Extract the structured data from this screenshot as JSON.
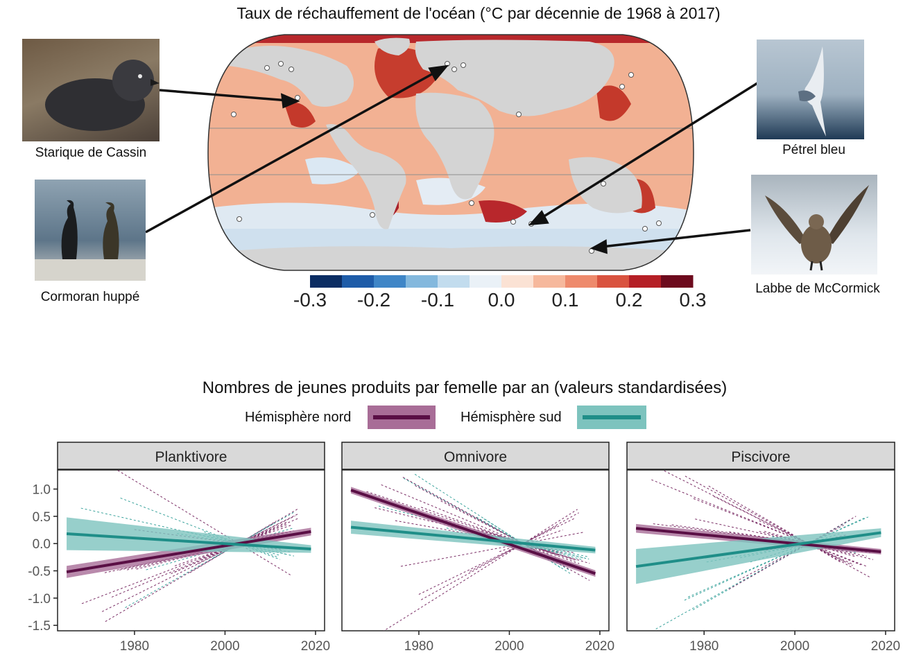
{
  "map": {
    "title": "Taux de réchauffement de l'océan (°C par décennie de 1968 à 2017)",
    "colorbar": {
      "ticks": [
        "-0.3",
        "-0.2",
        "-0.1",
        "0.0",
        "0.1",
        "0.2",
        "0.3"
      ],
      "colors": [
        "#0b2d63",
        "#1e5ca8",
        "#3f86c7",
        "#83b8dd",
        "#c2dcee",
        "#eaf1f7",
        "#fbe2d4",
        "#f6b89c",
        "#ee8a6c",
        "#d9533f",
        "#b51f26",
        "#6d0a1d"
      ]
    },
    "colors": {
      "land": "#d4d4d4",
      "ocean_warm": "#f0a584",
      "ocean_hot": "#c43a2c",
      "ocean_cool": "#cfe0ee"
    }
  },
  "birds": [
    {
      "id": "cassin",
      "label": "Starique de Cassin"
    },
    {
      "id": "cormoran",
      "label": "Cormoran huppé"
    },
    {
      "id": "petrel",
      "label": "Pétrel bleu"
    },
    {
      "id": "labbe",
      "label": "Labbe de McCormick"
    }
  ],
  "lower": {
    "title": "Nombres de jeunes produits par femelle par an (valeurs standardisées)",
    "legend": [
      {
        "label": "Hémisphère nord",
        "color": "#5a0f45",
        "band": "#a86d97"
      },
      {
        "label": "Hémisphère sud",
        "color": "#1f8e88",
        "band": "#7dc3be"
      }
    ]
  },
  "chart_data": [
    {
      "type": "line",
      "facet": "Planktivore",
      "xlim": [
        1963,
        2022
      ],
      "ylim": [
        -1.6,
        1.35
      ],
      "x_ticks": [
        1980,
        2000,
        2020
      ],
      "y_ticks": [
        1.0,
        0.5,
        0.0,
        -0.5,
        -1.0,
        -1.5
      ],
      "y_tick_labels": [
        "1.0",
        "0.5",
        "0.0",
        "-0.5",
        "-1.0",
        "-1.5"
      ],
      "series": [
        {
          "name": "Hémisphère nord",
          "x": [
            1965,
            2019
          ],
          "y": [
            -0.52,
            0.22
          ],
          "band": [
            0.11,
            0.07
          ]
        },
        {
          "name": "Hémisphère sud",
          "x": [
            1965,
            2019
          ],
          "y": [
            0.18,
            -0.1
          ],
          "band": [
            0.3,
            0.07
          ]
        }
      ]
    },
    {
      "type": "line",
      "facet": "Omnivore",
      "xlim": [
        1963,
        2022
      ],
      "ylim": [
        -1.6,
        1.35
      ],
      "x_ticks": [
        1980,
        2000,
        2020
      ],
      "series": [
        {
          "name": "Hémisphère nord",
          "x": [
            1965,
            2019
          ],
          "y": [
            0.98,
            -0.55
          ],
          "band": [
            0.06,
            0.06
          ]
        },
        {
          "name": "Hémisphère sud",
          "x": [
            1965,
            2019
          ],
          "y": [
            0.3,
            -0.12
          ],
          "band": [
            0.12,
            0.06
          ]
        }
      ]
    },
    {
      "type": "line",
      "facet": "Piscivore",
      "xlim": [
        1963,
        2022
      ],
      "ylim": [
        -1.6,
        1.35
      ],
      "x_ticks": [
        1980,
        2000,
        2020
      ],
      "series": [
        {
          "name": "Hémisphère nord",
          "x": [
            1965,
            2019
          ],
          "y": [
            0.28,
            -0.15
          ],
          "band": [
            0.08,
            0.05
          ]
        },
        {
          "name": "Hémisphère sud",
          "x": [
            1965,
            2019
          ],
          "y": [
            -0.42,
            0.2
          ],
          "band": [
            0.32,
            0.08
          ]
        }
      ]
    }
  ]
}
